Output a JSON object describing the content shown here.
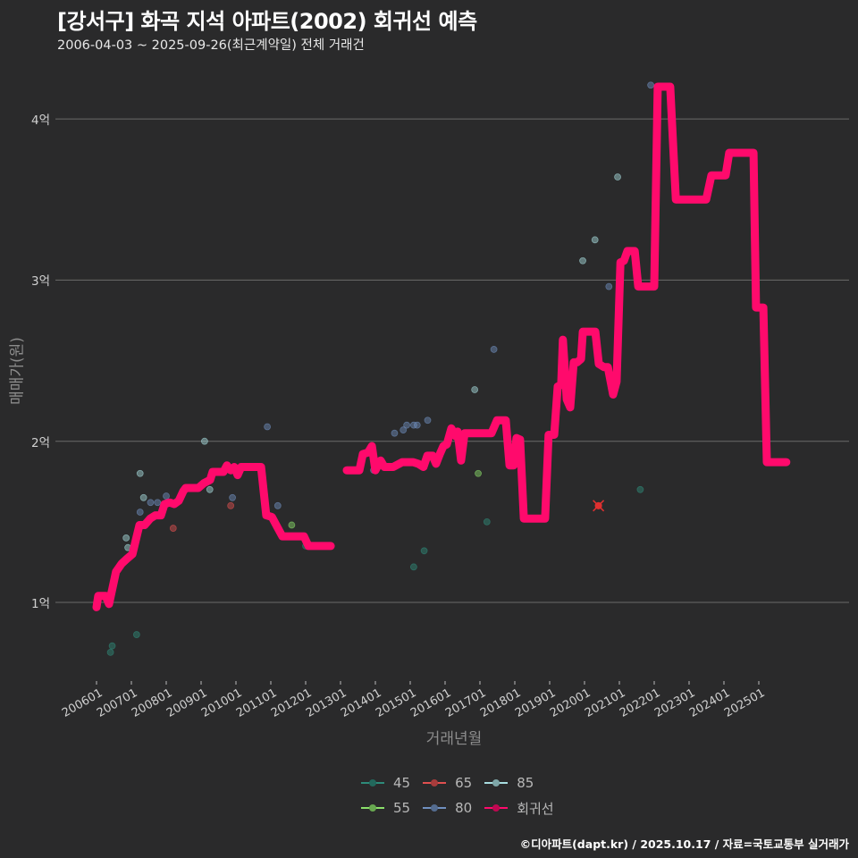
{
  "header": {
    "title": "[강서구] 화곡 지석 아파트(2002) 회귀선 예측",
    "subtitle": "2006-04-03 ~ 2025-09-26(최근계약일) 전체 거래건"
  },
  "axes": {
    "ylabel": "매매가(원)",
    "xlabel": "거래년월",
    "yticks": [
      "1억",
      "2억",
      "3억",
      "4억"
    ],
    "xticks": [
      "200601",
      "200701",
      "200801",
      "200901",
      "201001",
      "201101",
      "201201",
      "201301",
      "201401",
      "201501",
      "201601",
      "201701",
      "201801",
      "201901",
      "202001",
      "202101",
      "202201",
      "202301",
      "202401",
      "202501"
    ]
  },
  "legend": {
    "items": [
      {
        "label": "45",
        "color": "#2e8b7a"
      },
      {
        "label": "65",
        "color": "#e05050"
      },
      {
        "label": "85",
        "color": "#a8dde0"
      },
      {
        "label": "55",
        "color": "#8be06a"
      },
      {
        "label": "80",
        "color": "#7090c0"
      },
      {
        "label": "회귀선",
        "color": "#ff0a6c"
      }
    ]
  },
  "credit": "©디아파트(dapt.kr) / 2025.10.17 / 자료=국토교통부 실거래가",
  "colors": {
    "background": "#2a2a2b",
    "gridline": "#6a6a6a",
    "regression": "#ff0a6c"
  },
  "chart_data": {
    "type": "line",
    "title": "[강서구] 화곡 지석 아파트(2002) 회귀선 예측",
    "subtitle": "2006-04-03 ~ 2025-09-26(최근계약일) 전체 거래건",
    "xlabel": "거래년월",
    "ylabel": "매매가(원)",
    "ylim_eok": [
      0.4,
      4.45
    ],
    "ytick_values_eok": [
      1,
      2,
      3,
      4
    ],
    "grid": true,
    "legend_position": "bottom",
    "x_unit": "year (decimal)",
    "y_unit": "억원",
    "series": [
      {
        "name": "회귀선",
        "color": "#ff0a6c",
        "segments": [
          [
            [
              2006.0,
              0.97
            ],
            [
              2006.05,
              1.04
            ],
            [
              2006.26,
              1.04
            ],
            [
              2006.36,
              0.99
            ],
            [
              2006.56,
              1.19
            ],
            [
              2006.72,
              1.24
            ],
            [
              2006.87,
              1.27
            ],
            [
              2007.03,
              1.3
            ],
            [
              2007.13,
              1.39
            ],
            [
              2007.23,
              1.48
            ],
            [
              2007.38,
              1.48
            ],
            [
              2007.54,
              1.52
            ],
            [
              2007.69,
              1.54
            ],
            [
              2007.85,
              1.54
            ],
            [
              2007.95,
              1.61
            ],
            [
              2008.1,
              1.62
            ],
            [
              2008.23,
              1.61
            ],
            [
              2008.36,
              1.63
            ],
            [
              2008.49,
              1.69
            ],
            [
              2008.56,
              1.71
            ],
            [
              2008.74,
              1.71
            ],
            [
              2008.92,
              1.71
            ],
            [
              2009.08,
              1.74
            ],
            [
              2009.26,
              1.76
            ],
            [
              2009.33,
              1.81
            ],
            [
              2009.64,
              1.81
            ],
            [
              2009.74,
              1.85
            ],
            [
              2009.85,
              1.82
            ],
            [
              2009.95,
              1.84
            ],
            [
              2010.05,
              1.79
            ],
            [
              2010.15,
              1.84
            ],
            [
              2010.72,
              1.84
            ],
            [
              2010.87,
              1.54
            ],
            [
              2011.03,
              1.53
            ],
            [
              2011.18,
              1.47
            ],
            [
              2011.33,
              1.41
            ],
            [
              2011.95,
              1.41
            ],
            [
              2012.08,
              1.35
            ],
            [
              2012.72,
              1.35
            ]
          ],
          [
            [
              2013.18,
              1.82
            ],
            [
              2013.54,
              1.82
            ],
            [
              2013.64,
              1.92
            ],
            [
              2013.79,
              1.93
            ],
            [
              2013.9,
              1.97
            ],
            [
              2014.0,
              1.82
            ],
            [
              2014.15,
              1.88
            ],
            [
              2014.26,
              1.84
            ],
            [
              2014.51,
              1.84
            ],
            [
              2014.77,
              1.87
            ],
            [
              2015.08,
              1.87
            ],
            [
              2015.23,
              1.86
            ],
            [
              2015.38,
              1.84
            ],
            [
              2015.49,
              1.91
            ],
            [
              2015.64,
              1.91
            ],
            [
              2015.74,
              1.86
            ],
            [
              2015.85,
              1.92
            ],
            [
              2015.95,
              1.97
            ],
            [
              2016.05,
              1.98
            ],
            [
              2016.18,
              2.08
            ],
            [
              2016.31,
              2.03
            ],
            [
              2016.36,
              2.06
            ],
            [
              2016.46,
              1.88
            ],
            [
              2016.56,
              2.05
            ],
            [
              2017.33,
              2.05
            ],
            [
              2017.49,
              2.13
            ],
            [
              2017.74,
              2.13
            ],
            [
              2017.85,
              1.85
            ],
            [
              2017.97,
              1.85
            ],
            [
              2018.05,
              2.02
            ],
            [
              2018.15,
              2.01
            ],
            [
              2018.26,
              1.52
            ],
            [
              2018.87,
              1.52
            ],
            [
              2018.97,
              2.04
            ],
            [
              2019.13,
              2.04
            ],
            [
              2019.23,
              2.34
            ],
            [
              2019.33,
              2.35
            ],
            [
              2019.38,
              2.63
            ],
            [
              2019.49,
              2.26
            ],
            [
              2019.59,
              2.21
            ],
            [
              2019.69,
              2.49
            ],
            [
              2019.79,
              2.49
            ],
            [
              2019.9,
              2.51
            ],
            [
              2019.95,
              2.68
            ],
            [
              2020.31,
              2.68
            ],
            [
              2020.41,
              2.48
            ],
            [
              2020.56,
              2.46
            ],
            [
              2020.67,
              2.46
            ],
            [
              2020.82,
              2.29
            ],
            [
              2020.92,
              2.37
            ],
            [
              2021.03,
              3.11
            ],
            [
              2021.13,
              3.12
            ],
            [
              2021.23,
              3.18
            ],
            [
              2021.44,
              3.18
            ],
            [
              2021.54,
              2.96
            ],
            [
              2022.0,
              2.96
            ],
            [
              2022.1,
              4.2
            ],
            [
              2022.46,
              4.2
            ],
            [
              2022.62,
              3.5
            ],
            [
              2023.49,
              3.5
            ],
            [
              2023.64,
              3.65
            ],
            [
              2024.05,
              3.65
            ],
            [
              2024.15,
              3.79
            ],
            [
              2024.85,
              3.79
            ],
            [
              2024.92,
              2.83
            ],
            [
              2025.13,
              2.83
            ],
            [
              2025.23,
              1.87
            ],
            [
              2025.79,
              1.87
            ]
          ]
        ]
      },
      {
        "name": "45",
        "color": "#2e8b7a",
        "points": [
          [
            2006.4,
            0.69
          ],
          [
            2006.45,
            0.73
          ],
          [
            2007.15,
            0.8
          ],
          [
            2012.0,
            1.35
          ],
          [
            2015.1,
            1.22
          ],
          [
            2015.4,
            1.32
          ],
          [
            2017.2,
            1.5
          ],
          [
            2021.6,
            1.7
          ]
        ]
      },
      {
        "name": "55",
        "color": "#8be06a",
        "points": [
          [
            2011.6,
            1.48
          ],
          [
            2016.95,
            1.8
          ]
        ]
      },
      {
        "name": "65",
        "color": "#e05050",
        "points": [
          [
            2008.2,
            1.46
          ],
          [
            2009.85,
            1.6
          ],
          [
            2020.4,
            1.6
          ]
        ]
      },
      {
        "name": "80",
        "color": "#7090c0",
        "points": [
          [
            2007.25,
            1.56
          ],
          [
            2007.55,
            1.62
          ],
          [
            2007.75,
            1.62
          ],
          [
            2008.0,
            1.66
          ],
          [
            2009.9,
            1.65
          ],
          [
            2011.2,
            1.6
          ],
          [
            2010.9,
            2.09
          ],
          [
            2013.95,
            1.82
          ],
          [
            2014.55,
            2.05
          ],
          [
            2014.8,
            2.07
          ],
          [
            2014.9,
            2.1
          ],
          [
            2015.1,
            2.1
          ],
          [
            2015.2,
            2.1
          ],
          [
            2015.5,
            2.13
          ],
          [
            2017.4,
            2.57
          ],
          [
            2020.7,
            2.96
          ],
          [
            2021.9,
            4.21
          ]
        ]
      },
      {
        "name": "85",
        "color": "#a8dde0",
        "points": [
          [
            2006.9,
            1.34
          ],
          [
            2006.85,
            1.4
          ],
          [
            2007.25,
            1.8
          ],
          [
            2007.35,
            1.65
          ],
          [
            2009.25,
            1.7
          ],
          [
            2009.1,
            2.0
          ],
          [
            2016.85,
            2.32
          ],
          [
            2019.95,
            3.12
          ],
          [
            2020.3,
            3.25
          ],
          [
            2020.95,
            3.64
          ]
        ]
      }
    ]
  }
}
